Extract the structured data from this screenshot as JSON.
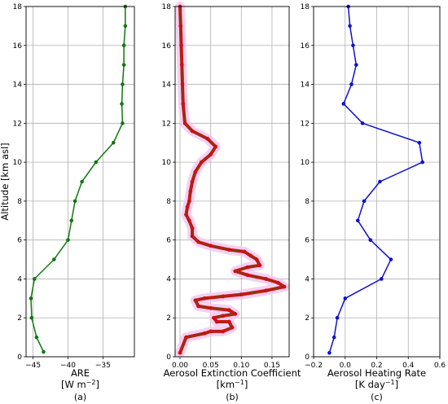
{
  "chart_data": [
    {
      "type": "line",
      "id": "a",
      "ylabel": "Altitude [km asl]",
      "xlabel_line1": "ARE",
      "xlabel_line2_pre": "[W m",
      "xlabel_line2_sup": "−2",
      "xlabel_line2_post": "]",
      "panel_label": "(a)",
      "xlim": [
        -46,
        -30.5
      ],
      "ylim": [
        0,
        18
      ],
      "xticks": [
        -45,
        -40,
        -35
      ],
      "yticks": [
        0,
        2,
        4,
        6,
        8,
        10,
        12,
        14,
        16,
        18
      ],
      "color": "#117711",
      "points": [
        [
          -43.5,
          0.25
        ],
        [
          -44.5,
          1.0
        ],
        [
          -45.2,
          2.0
        ],
        [
          -45.3,
          3.0
        ],
        [
          -44.8,
          4.0
        ],
        [
          -42.0,
          5.0
        ],
        [
          -40.0,
          6.0
        ],
        [
          -39.5,
          7.0
        ],
        [
          -39.0,
          8.0
        ],
        [
          -38.0,
          9.0
        ],
        [
          -36.0,
          10.0
        ],
        [
          -33.5,
          11.0
        ],
        [
          -32.2,
          12.0
        ],
        [
          -32.3,
          13.0
        ],
        [
          -32.2,
          14.0
        ],
        [
          -32.0,
          15.0
        ],
        [
          -32.0,
          16.0
        ],
        [
          -31.8,
          17.0
        ],
        [
          -31.8,
          18.0
        ]
      ]
    },
    {
      "type": "line",
      "id": "b",
      "xlabel_line1": "Aerosol Extinction Coefficient",
      "xlabel_line2_pre": "[km",
      "xlabel_line2_sup": "−1",
      "xlabel_line2_post": "]",
      "panel_label": "(b)",
      "xlim": [
        -0.008,
        0.178
      ],
      "ylim": [
        0,
        18
      ],
      "xticks": [
        "0.00",
        "0.05",
        "0.10",
        "0.15"
      ],
      "xtick_values": [
        0,
        0.05,
        0.1,
        0.15
      ],
      "yticks": [
        0,
        2,
        4,
        6,
        8,
        10,
        12,
        14,
        16,
        18
      ],
      "line_color": "#6b4a10",
      "marker_color": "#cc1111",
      "band_color": "#f5c8f0",
      "points": [
        [
          0.0,
          0.2
        ],
        [
          0.01,
          1.0
        ],
        [
          0.04,
          1.2
        ],
        [
          0.05,
          1.3
        ],
        [
          0.07,
          1.3
        ],
        [
          0.085,
          1.5
        ],
        [
          0.08,
          1.8
        ],
        [
          0.06,
          1.8
        ],
        [
          0.055,
          2.0
        ],
        [
          0.07,
          2.1
        ],
        [
          0.09,
          2.2
        ],
        [
          0.08,
          2.4
        ],
        [
          0.05,
          2.5
        ],
        [
          0.03,
          2.6
        ],
        [
          0.025,
          2.9
        ],
        [
          0.04,
          3.0
        ],
        [
          0.07,
          3.1
        ],
        [
          0.1,
          3.2
        ],
        [
          0.14,
          3.4
        ],
        [
          0.17,
          3.6
        ],
        [
          0.16,
          3.8
        ],
        [
          0.14,
          4.0
        ],
        [
          0.11,
          4.2
        ],
        [
          0.09,
          4.4
        ],
        [
          0.11,
          4.6
        ],
        [
          0.13,
          4.7
        ],
        [
          0.125,
          5.0
        ],
        [
          0.115,
          5.2
        ],
        [
          0.105,
          5.4
        ],
        [
          0.08,
          5.5
        ],
        [
          0.05,
          5.7
        ],
        [
          0.03,
          5.9
        ],
        [
          0.02,
          6.2
        ],
        [
          0.02,
          6.6
        ],
        [
          0.015,
          7.0
        ],
        [
          0.01,
          7.3
        ],
        [
          0.012,
          7.7
        ],
        [
          0.015,
          8.0
        ],
        [
          0.017,
          8.5
        ],
        [
          0.02,
          9.0
        ],
        [
          0.025,
          9.5
        ],
        [
          0.035,
          10.0
        ],
        [
          0.05,
          10.4
        ],
        [
          0.058,
          10.8
        ],
        [
          0.045,
          11.2
        ],
        [
          0.02,
          11.6
        ],
        [
          0.008,
          12.0
        ],
        [
          0.005,
          13.0
        ],
        [
          0.004,
          14.0
        ],
        [
          0.003,
          15.0
        ],
        [
          0.002,
          16.0
        ],
        [
          0.001,
          17.0
        ],
        [
          0.0,
          18.0
        ]
      ]
    },
    {
      "type": "line",
      "id": "c",
      "xlabel_line1": "Aerosol Heating Rate",
      "xlabel_line2_pre": "[K day",
      "xlabel_line2_sup": "−1",
      "xlabel_line2_post": "]",
      "panel_label": "(c)",
      "xlim": [
        -0.2,
        0.6
      ],
      "ylim": [
        0,
        18
      ],
      "xticks": [
        "−0.2",
        "0.0",
        "0.2",
        "0.4",
        "0.6"
      ],
      "xtick_values": [
        -0.2,
        0.0,
        0.2,
        0.4,
        0.6
      ],
      "yticks": [
        0,
        2,
        4,
        6,
        8,
        10,
        12,
        14,
        16,
        18
      ],
      "color": "#1111cc",
      "points": [
        [
          -0.1,
          0.2
        ],
        [
          -0.07,
          1.0
        ],
        [
          -0.05,
          2.0
        ],
        [
          0.0,
          3.0
        ],
        [
          0.23,
          4.0
        ],
        [
          0.29,
          5.0
        ],
        [
          0.16,
          6.0
        ],
        [
          0.08,
          7.0
        ],
        [
          0.12,
          8.0
        ],
        [
          0.22,
          9.0
        ],
        [
          0.49,
          10.0
        ],
        [
          0.47,
          11.0
        ],
        [
          0.11,
          12.0
        ],
        [
          -0.01,
          13.0
        ],
        [
          0.04,
          14.0
        ],
        [
          0.07,
          15.0
        ],
        [
          0.05,
          16.0
        ],
        [
          0.03,
          17.0
        ],
        [
          0.02,
          18.0
        ]
      ]
    }
  ]
}
